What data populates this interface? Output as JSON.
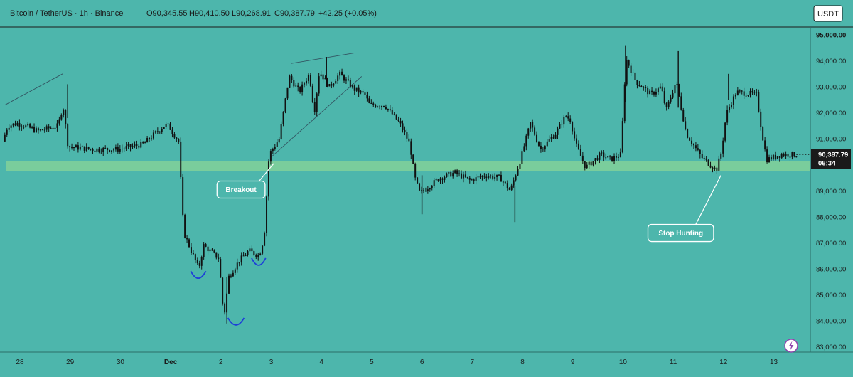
{
  "header": {
    "symbol": "Bitcoin / TetherUS · 1h · Binance",
    "open": "O90,345.55",
    "high": "H90,410.50",
    "low": "L90,268.91",
    "close": "C90,387.79",
    "change": "+42.25 (+0.05%)"
  },
  "currency_button": "USDT",
  "price_badge": {
    "price": "90,387.79",
    "countdown": "06:34"
  },
  "annotations": {
    "breakout": "Breakout",
    "stop_hunting": "Stop Hunting"
  },
  "colors": {
    "background": "#4db6ac",
    "support_zone": "#7fcf9a",
    "candle": "#111111",
    "curve": "#1e40d8",
    "badge": "#1a1a1a"
  },
  "chart_data": {
    "type": "candlestick",
    "title": "Bitcoin / TetherUS · 1h · Binance",
    "ylim": [
      82800,
      95300
    ],
    "yticks": [
      "95,000.00",
      "94,000.00",
      "93,000.00",
      "92,000.00",
      "91,000.00",
      "89,000.00",
      "88,000.00",
      "87,000.00",
      "86,000.00",
      "85,000.00",
      "84,000.00",
      "83,000.00"
    ],
    "ytick_values": [
      95000,
      94000,
      93000,
      92000,
      91000,
      89000,
      88000,
      87000,
      86000,
      85000,
      84000,
      83000
    ],
    "xlim_days": [
      -0.3,
      15.5
    ],
    "xticks": [
      "28",
      "29",
      "30",
      "Dec",
      "2",
      "3",
      "4",
      "5",
      "6",
      "7",
      "8",
      "9",
      "10",
      "11",
      "12",
      "13"
    ],
    "xtick_days": [
      0,
      1,
      2,
      3,
      4,
      5,
      6,
      7,
      8,
      9,
      10,
      11,
      12,
      13,
      14,
      15
    ],
    "support_zone": [
      89750,
      90150
    ],
    "last_price": 90387.79,
    "price_path": [
      [
        -0.3,
        90900
      ],
      [
        -0.2,
        91500
      ],
      [
        0.0,
        91600
      ],
      [
        0.4,
        91300
      ],
      [
        0.8,
        91500
      ],
      [
        0.9,
        92300
      ],
      [
        1.0,
        90700
      ],
      [
        1.5,
        90600
      ],
      [
        2.0,
        90600
      ],
      [
        2.5,
        90800
      ],
      [
        2.9,
        91500
      ],
      [
        3.0,
        91500
      ],
      [
        3.2,
        90900
      ],
      [
        3.3,
        87400
      ],
      [
        3.6,
        86000
      ],
      [
        3.7,
        86900
      ],
      [
        4.0,
        86400
      ],
      [
        4.1,
        84100
      ],
      [
        4.2,
        85700
      ],
      [
        4.4,
        86300
      ],
      [
        4.6,
        86700
      ],
      [
        4.8,
        86500
      ],
      [
        4.9,
        87200
      ],
      [
        5.0,
        90400
      ],
      [
        5.2,
        91000
      ],
      [
        5.4,
        93400
      ],
      [
        5.6,
        92800
      ],
      [
        5.8,
        93500
      ],
      [
        5.9,
        92000
      ],
      [
        6.0,
        93600
      ],
      [
        6.2,
        93000
      ],
      [
        6.4,
        93500
      ],
      [
        6.7,
        92900
      ],
      [
        6.9,
        92700
      ],
      [
        7.0,
        92300
      ],
      [
        7.3,
        92300
      ],
      [
        7.6,
        91600
      ],
      [
        7.8,
        90800
      ],
      [
        7.9,
        89500
      ],
      [
        8.0,
        88900
      ],
      [
        8.4,
        89500
      ],
      [
        8.7,
        89700
      ],
      [
        9.0,
        89400
      ],
      [
        9.3,
        89600
      ],
      [
        9.6,
        89500
      ],
      [
        9.8,
        89000
      ],
      [
        10.0,
        90200
      ],
      [
        10.2,
        91600
      ],
      [
        10.4,
        90600
      ],
      [
        10.7,
        91200
      ],
      [
        10.9,
        91900
      ],
      [
        11.0,
        91700
      ],
      [
        11.1,
        90800
      ],
      [
        11.3,
        89900
      ],
      [
        11.6,
        90400
      ],
      [
        11.8,
        90200
      ],
      [
        12.0,
        90400
      ],
      [
        12.1,
        94100
      ],
      [
        12.3,
        93200
      ],
      [
        12.6,
        92700
      ],
      [
        12.8,
        93000
      ],
      [
        12.9,
        92100
      ],
      [
        13.1,
        93200
      ],
      [
        13.3,
        91200
      ],
      [
        13.6,
        90300
      ],
      [
        13.9,
        89800
      ],
      [
        14.0,
        90500
      ],
      [
        14.1,
        92000
      ],
      [
        14.3,
        92800
      ],
      [
        14.7,
        92700
      ],
      [
        14.8,
        91300
      ],
      [
        14.9,
        90200
      ],
      [
        15.2,
        90400
      ],
      [
        15.45,
        90387.79
      ]
    ],
    "spikes": [
      {
        "day": 0.95,
        "low": 91800,
        "high": 93100
      },
      {
        "day": 4.12,
        "low": 83900,
        "high": 85700
      },
      {
        "day": 6.1,
        "low": 93000,
        "high": 94150
      },
      {
        "day": 8.0,
        "low": 88100,
        "high": 89600
      },
      {
        "day": 9.85,
        "low": 87800,
        "high": 89200
      },
      {
        "day": 12.05,
        "low": 92400,
        "high": 94600
      },
      {
        "day": 13.1,
        "low": 92200,
        "high": 94400
      },
      {
        "day": 14.1,
        "low": 92500,
        "high": 93500
      }
    ],
    "trendlines": [
      {
        "x1": -0.3,
        "y1": 92300,
        "x2": 0.85,
        "y2": 93500
      },
      {
        "x1": 5.4,
        "y1": 93900,
        "x2": 6.65,
        "y2": 94300
      },
      {
        "x1": 5.0,
        "y1": 90300,
        "x2": 6.8,
        "y2": 93400
      }
    ],
    "curves": [
      {
        "day": 3.55,
        "price": 85750,
        "w": 0.3
      },
      {
        "day": 4.3,
        "price": 83950,
        "w": 0.32
      },
      {
        "day": 4.75,
        "price": 86250,
        "w": 0.28
      }
    ],
    "callouts": [
      {
        "text_key": "breakout",
        "label_day": 4.4,
        "label_price": 89050,
        "target_day": 5.05,
        "target_price": 90050
      },
      {
        "text_key": "stop_hunting",
        "label_day": 13.15,
        "label_price": 87380,
        "target_day": 13.95,
        "target_price": 89600
      }
    ]
  }
}
